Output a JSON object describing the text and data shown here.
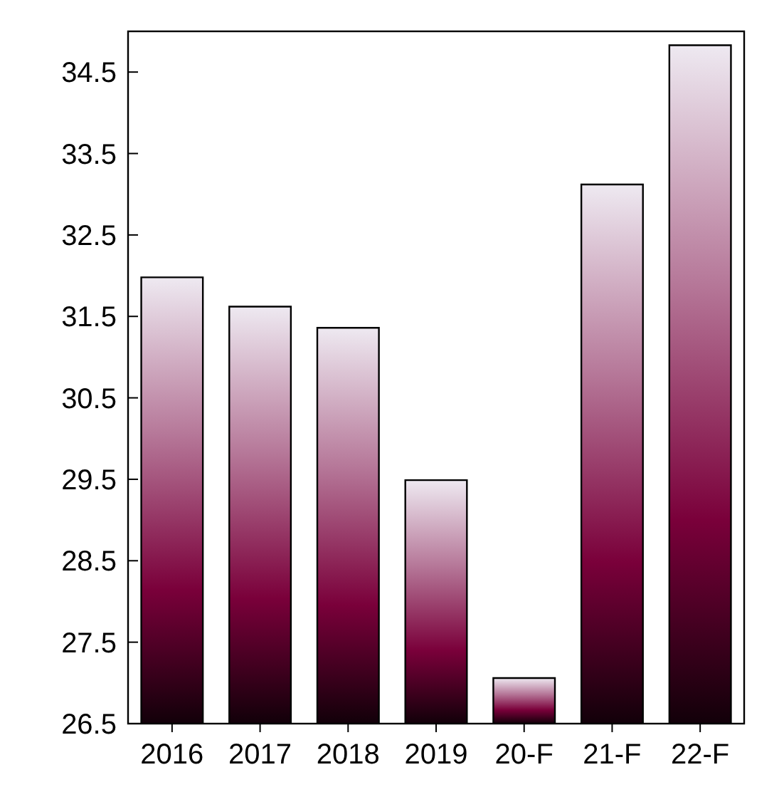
{
  "chart_data": {
    "type": "bar",
    "categories": [
      "2016",
      "2017",
      "2018",
      "2019",
      "20-F",
      "21-F",
      "22-F"
    ],
    "values": [
      31.98,
      31.62,
      31.36,
      29.49,
      27.06,
      33.12,
      34.83
    ],
    "color": "#7a003a",
    "ylim": [
      26.5,
      35
    ],
    "yticks": [
      26.5,
      27.5,
      28.5,
      29.5,
      30.5,
      31.5,
      32.5,
      33.5,
      34.5
    ],
    "grid": false
  }
}
